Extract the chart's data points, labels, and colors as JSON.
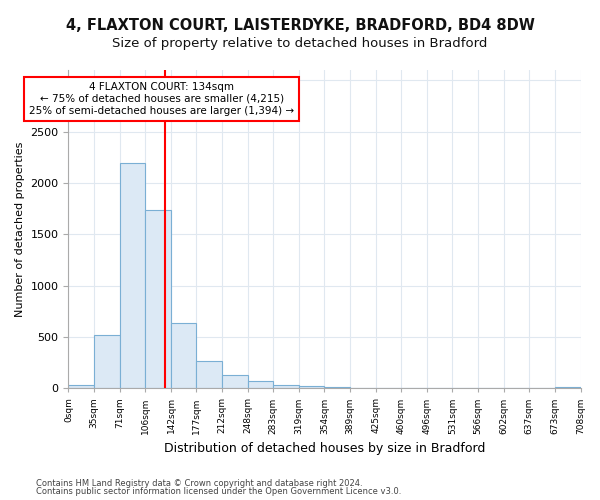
{
  "title1": "4, FLAXTON COURT, LAISTERDYKE, BRADFORD, BD4 8DW",
  "title2": "Size of property relative to detached houses in Bradford",
  "xlabel": "Distribution of detached houses by size in Bradford",
  "ylabel": "Number of detached properties",
  "bin_edges": [
    0,
    35,
    71,
    106,
    142,
    177,
    212,
    248,
    283,
    319,
    354,
    389,
    425,
    460,
    496,
    531,
    566,
    602,
    637,
    673,
    708
  ],
  "bar_heights": [
    30,
    520,
    2190,
    1740,
    635,
    265,
    130,
    70,
    30,
    18,
    8,
    4,
    3,
    2,
    1,
    1,
    1,
    0,
    0,
    15
  ],
  "bar_color": "#dce9f5",
  "bar_edge_color": "#7aafd4",
  "red_line_x": 134,
  "annotation_text": "4 FLAXTON COURT: 134sqm\n← 75% of detached houses are smaller (4,215)\n25% of semi-detached houses are larger (1,394) →",
  "annotation_box_color": "white",
  "annotation_box_edge_color": "red",
  "ylim": [
    0,
    3100
  ],
  "footer1": "Contains HM Land Registry data © Crown copyright and database right 2024.",
  "footer2": "Contains public sector information licensed under the Open Government Licence v3.0.",
  "tick_labels": [
    "0sqm",
    "35sqm",
    "71sqm",
    "106sqm",
    "142sqm",
    "177sqm",
    "212sqm",
    "248sqm",
    "283sqm",
    "319sqm",
    "354sqm",
    "389sqm",
    "425sqm",
    "460sqm",
    "496sqm",
    "531sqm",
    "566sqm",
    "602sqm",
    "637sqm",
    "673sqm",
    "708sqm"
  ],
  "background_color": "#ffffff",
  "grid_color": "#e0e8f0",
  "title1_fontsize": 10.5,
  "title2_fontsize": 9.5
}
